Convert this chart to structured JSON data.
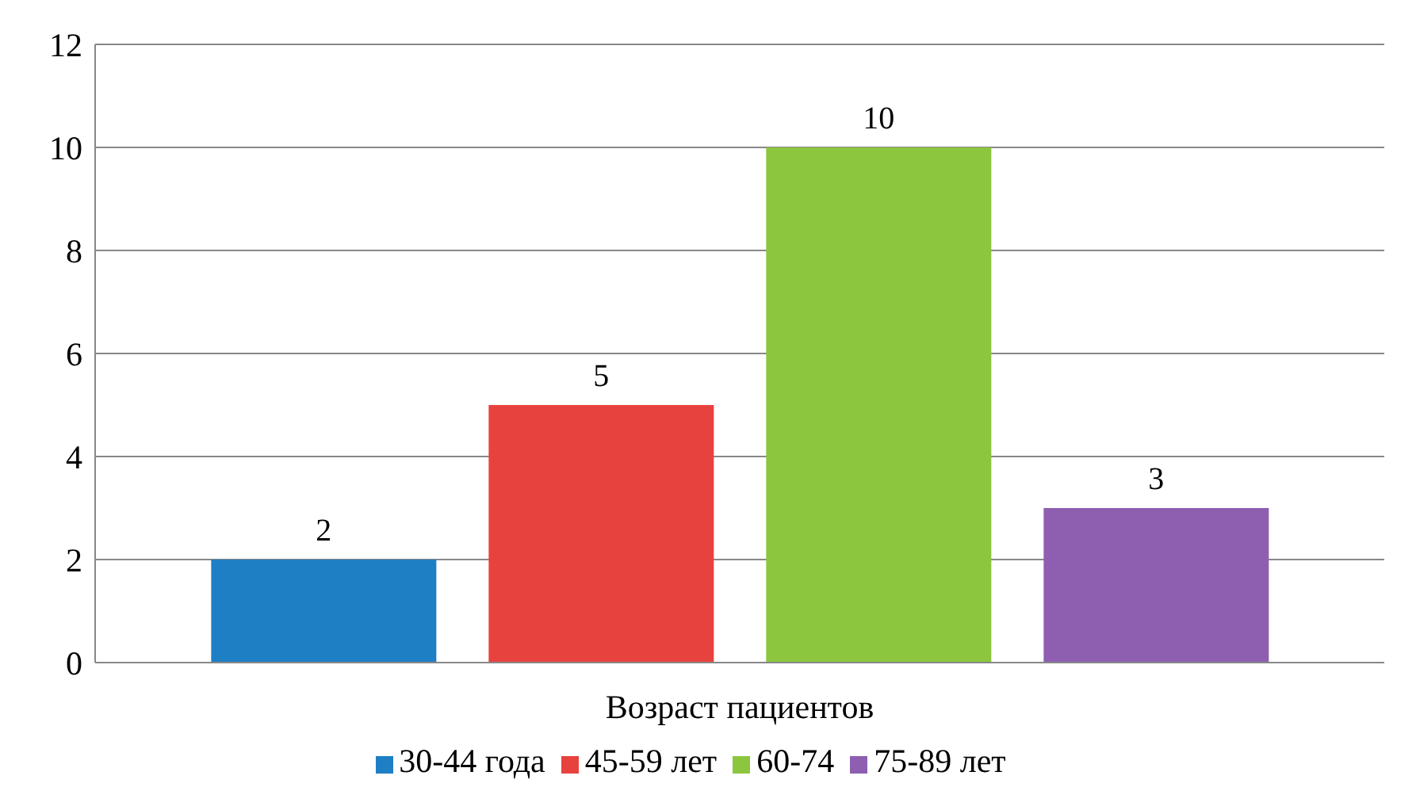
{
  "chart_data": {
    "type": "bar",
    "categories": [
      "Возраст пациентов"
    ],
    "series": [
      {
        "name": "30-44 года",
        "color": "#1f7fc4",
        "values": [
          2
        ]
      },
      {
        "name": "45-59 лет",
        "color": "#e8423f",
        "values": [
          5
        ]
      },
      {
        "name": "60-74",
        "color": "#8cc63e",
        "values": [
          10
        ]
      },
      {
        "name": "75-89 лет",
        "color": "#8e5fb0",
        "values": [
          3
        ]
      }
    ],
    "ylim": [
      0,
      12
    ],
    "yticks": [
      0,
      2,
      4,
      6,
      8,
      10,
      12
    ],
    "grid": "y",
    "legend": "bottom",
    "data_labels": true
  }
}
